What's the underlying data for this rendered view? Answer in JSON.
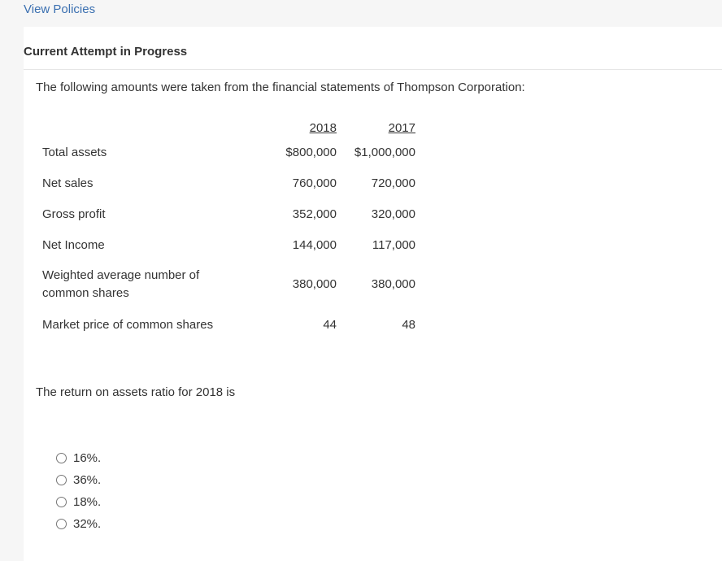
{
  "header": {
    "policies_link": "View Policies"
  },
  "attempt": {
    "title": "Current Attempt in Progress"
  },
  "question": {
    "intro": "The following amounts were taken from the financial statements of Thompson Corporation:",
    "table": {
      "col_2018": "2018",
      "col_2017": "2017",
      "rows": [
        {
          "label": "Total assets",
          "v2018": "$800,000",
          "v2017": "$1,000,000"
        },
        {
          "label": "Net sales",
          "v2018": "760,000",
          "v2017": "720,000"
        },
        {
          "label": "Gross profit",
          "v2018": "352,000",
          "v2017": "320,000"
        },
        {
          "label": "Net Income",
          "v2018": "144,000",
          "v2017": "117,000"
        },
        {
          "label_line1": "Weighted average number of",
          "label_line2": "common shares",
          "v2018": "380,000",
          "v2017": "380,000"
        },
        {
          "label": "Market price of common shares",
          "v2018": "44",
          "v2017": "48"
        }
      ]
    },
    "prompt": "The return on assets ratio for 2018 is",
    "options": [
      "16%.",
      "36%.",
      "18%.",
      "32%."
    ]
  }
}
